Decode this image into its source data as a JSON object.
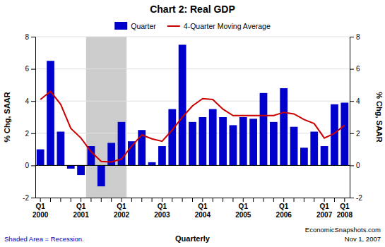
{
  "chart_data": {
    "type": "bar",
    "title": "Chart 2: Real GDP",
    "xlabel": "Quarterly",
    "ylabel": "% Chg, SAAR",
    "y2label": "% Chg, SAAR",
    "categories": [
      "Q1 2000",
      null,
      null,
      null,
      "Q1 2001",
      null,
      null,
      null,
      "Q1 2002",
      null,
      null,
      null,
      "Q1 2003",
      null,
      null,
      null,
      "Q1 2004",
      null,
      null,
      null,
      "Q1 2005",
      null,
      null,
      null,
      "Q1 2006",
      null,
      null,
      null,
      "Q1 2007",
      null,
      "Q1 2008"
    ],
    "series": [
      {
        "name": "Quarter",
        "type": "bar",
        "color": "#0000CC",
        "values": [
          1.0,
          6.5,
          2.1,
          -0.2,
          -0.6,
          1.2,
          -1.3,
          1.4,
          2.7,
          1.5,
          2.2,
          0.2,
          1.2,
          3.5,
          7.5,
          2.7,
          3.0,
          3.5,
          3.0,
          2.5,
          3.0,
          2.9,
          4.5,
          2.7,
          4.8,
          2.4,
          1.1,
          2.1,
          1.2,
          3.8,
          3.9
        ]
      },
      {
        "name": "4-Quarter Moving Average",
        "type": "line",
        "color": "#CC0000",
        "values": [
          4.1,
          4.6,
          3.8,
          2.3,
          1.7,
          0.85,
          0.25,
          0.22,
          0.4,
          1.2,
          1.9,
          1.65,
          1.5,
          2.2,
          3.0,
          3.7,
          4.15,
          4.1,
          3.5,
          3.1,
          3.1,
          3.1,
          3.1,
          3.1,
          3.3,
          3.2,
          2.85,
          2.6,
          1.7,
          2.0,
          2.5
        ]
      }
    ],
    "ylim": [
      -2,
      8
    ],
    "yticks": [
      -2,
      0,
      2,
      4,
      6,
      8
    ],
    "y2lim": [
      -2,
      8
    ],
    "y2ticks": [
      -2,
      0,
      2,
      4,
      6,
      8
    ],
    "grid": true,
    "legend": "top",
    "recession": {
      "start": 5,
      "end": 8,
      "color": "#CCCCCC"
    },
    "annotations": [
      "Shaded Area = Recession.",
      "EconomicSnapshots.com",
      "Nov 1, 2007"
    ]
  }
}
